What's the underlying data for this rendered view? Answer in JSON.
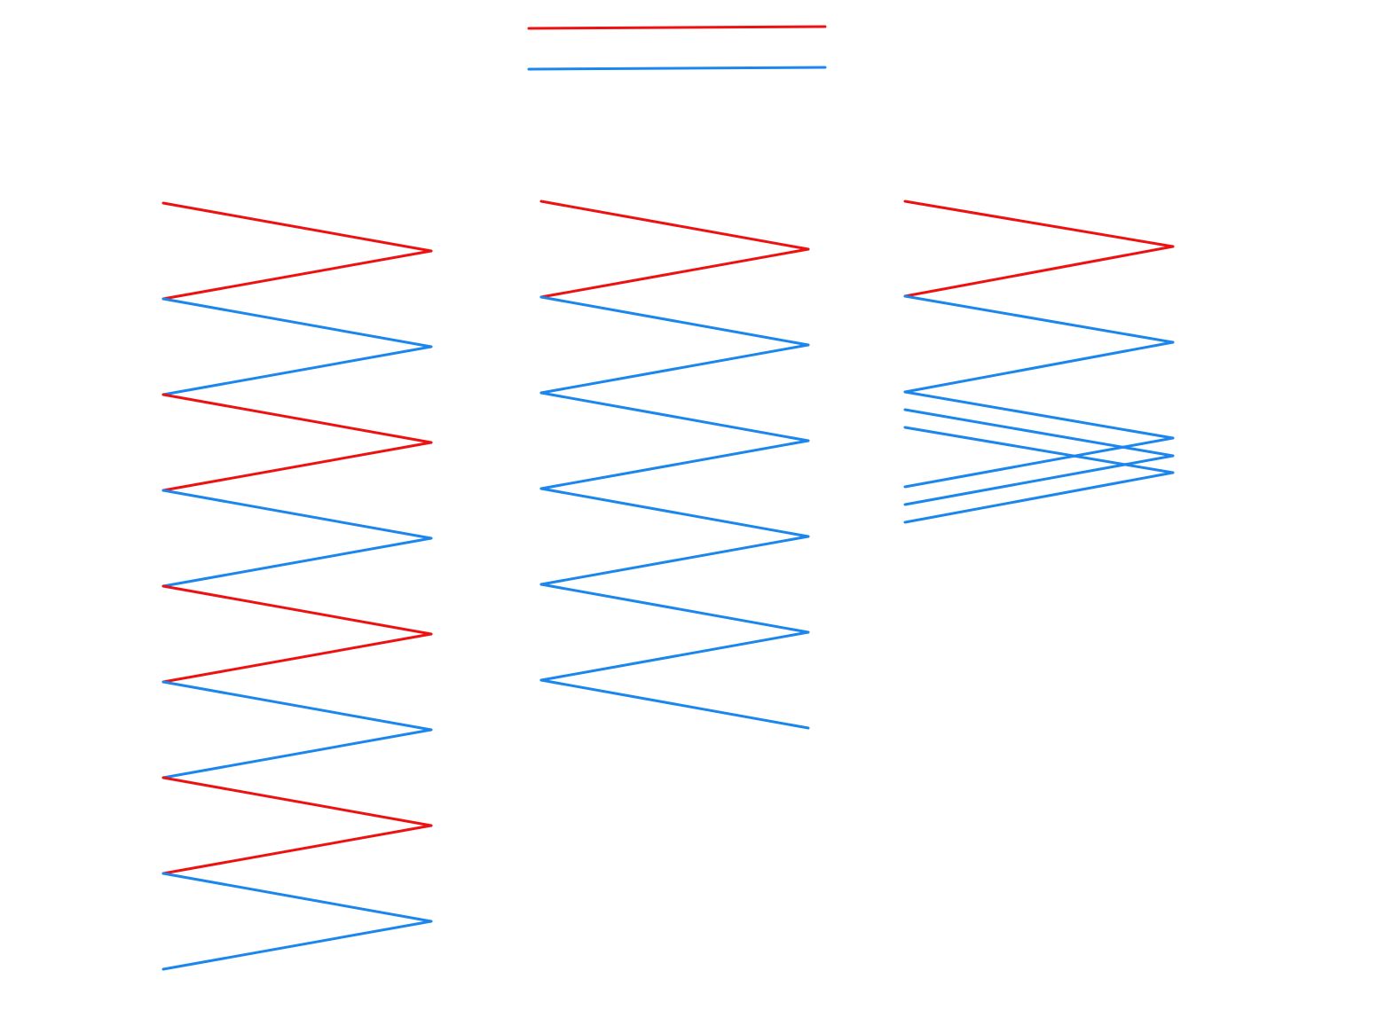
{
  "colors": {
    "red": "#ee1111",
    "blue": "#1a86ee",
    "background": "#ffffff"
  },
  "legend": [
    {
      "color": "red"
    },
    {
      "color": "blue"
    }
  ],
  "columns": [
    {
      "id": "column-1",
      "segments": [
        "red",
        "red",
        "blue",
        "blue",
        "red",
        "red",
        "blue",
        "blue",
        "red",
        "red",
        "blue",
        "blue",
        "red",
        "red",
        "blue",
        "blue"
      ]
    },
    {
      "id": "column-2",
      "segments": [
        "red",
        "red",
        "blue",
        "blue",
        "blue",
        "blue",
        "blue",
        "blue",
        "blue",
        "blue",
        "blue"
      ]
    },
    {
      "id": "column-3",
      "segments": [
        "red",
        "red",
        "blue",
        "blue",
        "blue",
        "blue",
        "blue",
        "blue",
        "blue",
        "blue"
      ]
    }
  ]
}
